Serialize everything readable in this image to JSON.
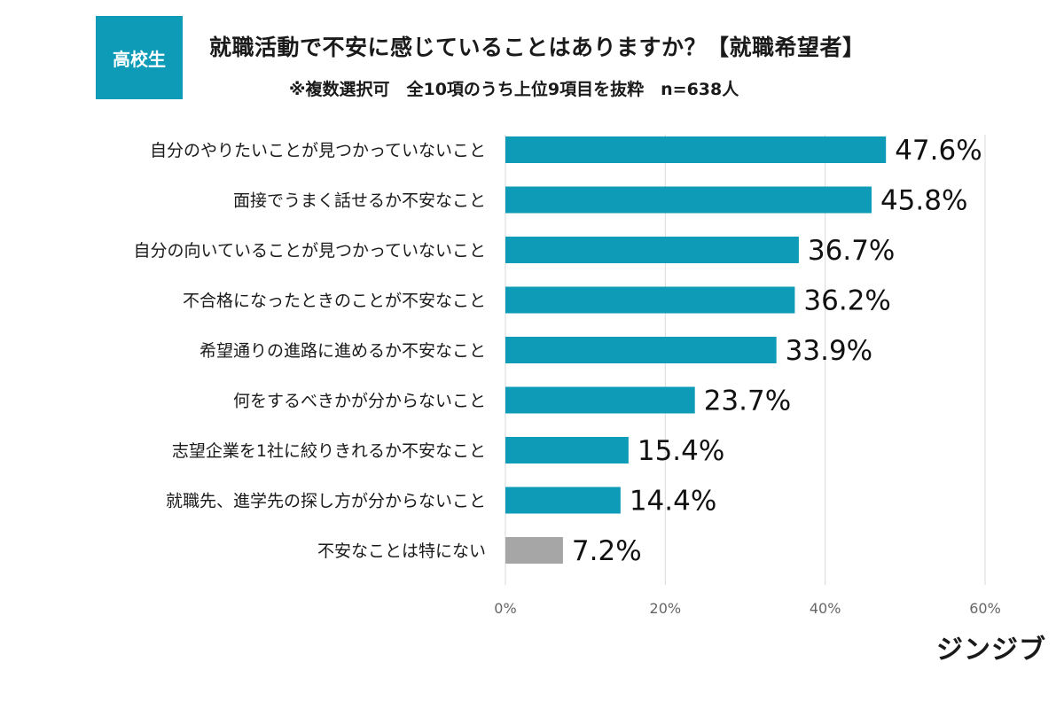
{
  "badge": "高校生",
  "title": "就職活動で不安に感じていることはありますか？【就職希望者】",
  "subtitle": "※複数選択可　全10項のうち上位9項目を抜粋　n=638人",
  "logo": "ジンジブ",
  "colors": {
    "bar": "#0e9bb7",
    "bar_muted": "#a6a6a6",
    "grid": "#d9d9d9",
    "tick_text": "#666666"
  },
  "chart_data": {
    "type": "bar",
    "orientation": "horizontal",
    "title": "就職活動で不安に感じていることはありますか？【就職希望者】",
    "categories": [
      "自分のやりたいことが見つかっていないこと",
      "面接でうまく話せるか不安なこと",
      "自分の向いていることが見つかっていないこと",
      "不合格になったときのことが不安なこと",
      "希望通りの進路に進めるか不安なこと",
      "何をするべきかが分からないこと",
      "志望企業を1社に絞りきれるか不安なこと",
      "就職先、進学先の探し方が分からないこと",
      "不安なことは特にない"
    ],
    "values": [
      47.6,
      45.8,
      36.7,
      36.2,
      33.9,
      23.7,
      15.4,
      14.4,
      7.2
    ],
    "value_labels": [
      "47.6%",
      "45.8%",
      "36.7%",
      "36.2%",
      "33.9%",
      "23.7%",
      "15.4%",
      "14.4%",
      "7.2%"
    ],
    "muted_categories": [
      "不安なことは特にない"
    ],
    "xlim": [
      0,
      60
    ],
    "xticks": [
      0,
      20,
      40,
      60
    ],
    "xtick_labels": [
      "0%",
      "20%",
      "40%",
      "60%"
    ],
    "grid": true,
    "legend": "none"
  }
}
